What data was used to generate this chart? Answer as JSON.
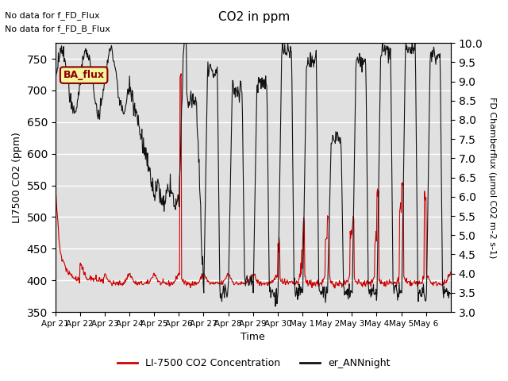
{
  "title": "CO2 in ppm",
  "xlabel": "Time",
  "ylabel_left": "LI7500 CO2 (ppm)",
  "ylabel_right": "FD Chamberflux (μmol CO2 m-2 s-1)",
  "ylim_left": [
    350,
    775
  ],
  "ylim_right": [
    3.0,
    10.0
  ],
  "yticks_left": [
    350,
    400,
    450,
    500,
    550,
    600,
    650,
    700,
    750
  ],
  "yticks_right": [
    3.0,
    3.5,
    4.0,
    4.5,
    5.0,
    5.5,
    6.0,
    6.5,
    7.0,
    7.5,
    8.0,
    8.5,
    9.0,
    9.5,
    10.0
  ],
  "x_tick_labels": [
    "Apr 21",
    "Apr 22",
    "Apr 23",
    "Apr 24",
    "Apr 25",
    "Apr 26",
    "Apr 27",
    "Apr 28",
    "Apr 29",
    "Apr 30",
    "May 1",
    "May 2",
    "May 3",
    "May 4",
    "May 5",
    "May 6"
  ],
  "annotations": [
    "No data for f_FD_Flux",
    "No data for f_FD_B_Flux"
  ],
  "ba_flux_label": "BA_flux",
  "legend_labels": [
    "LI-7500 CO2 Concentration",
    "er_ANNnight"
  ],
  "legend_colors": [
    "#cc0000",
    "#111111"
  ],
  "line_color_red": "#cc0000",
  "line_color_black": "#111111",
  "background_color": "#e0e0e0",
  "grid_color": "#ffffff"
}
